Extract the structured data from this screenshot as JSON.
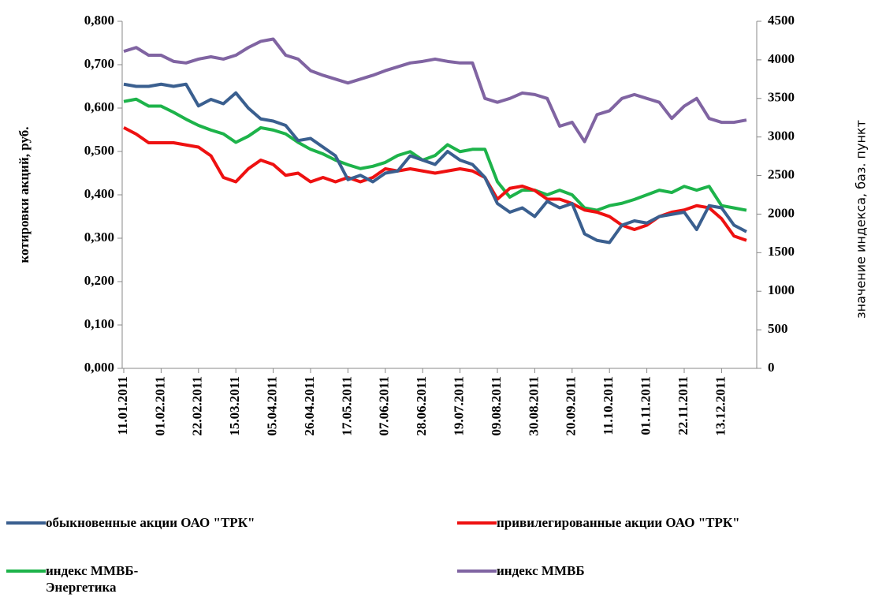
{
  "chart_data": {
    "type": "line",
    "categories": [
      "11.01.2011",
      null,
      null,
      "01.02.2011",
      null,
      null,
      "22.02.2011",
      null,
      null,
      "15.03.2011",
      null,
      null,
      "05.04.2011",
      null,
      null,
      "26.04.2011",
      null,
      null,
      "17.05.2011",
      null,
      null,
      "07.06.2011",
      null,
      null,
      "28.06.2011",
      null,
      null,
      "19.07.2011",
      null,
      null,
      "09.08.2011",
      null,
      null,
      "30.08.2011",
      null,
      null,
      "20.09.2011",
      null,
      null,
      "11.10.2011",
      null,
      null,
      "01.11.2011",
      null,
      null,
      "22.11.2011",
      null,
      null,
      "13.12.2011",
      null,
      null
    ],
    "ylabel": "котировки акций, руб.",
    "y2label": "значение индекса, баз. пункт",
    "ylim": [
      0,
      0.8
    ],
    "yticks": [
      {
        "value": 0,
        "label": "0,000"
      },
      {
        "value": 0.1,
        "label": "0,100"
      },
      {
        "value": 0.2,
        "label": "0,200"
      },
      {
        "value": 0.3,
        "label": "0,300"
      },
      {
        "value": 0.4,
        "label": "0,400"
      },
      {
        "value": 0.5,
        "label": "0,500"
      },
      {
        "value": 0.6,
        "label": "0,600"
      },
      {
        "value": 0.7,
        "label": "0,700"
      },
      {
        "value": 0.8,
        "label": "0,800"
      }
    ],
    "y2lim": [
      0,
      4500
    ],
    "y2ticks": [
      0,
      500,
      1000,
      1500,
      2000,
      2500,
      3000,
      3500,
      4000,
      4500
    ],
    "series": [
      {
        "name": "обыкновенные акции  ОАО \"ТРК\"",
        "color": "#3a5f8f",
        "values": [
          0.655,
          0.65,
          0.65,
          0.655,
          0.65,
          0.655,
          0.605,
          0.62,
          0.61,
          0.635,
          0.6,
          0.575,
          0.57,
          0.56,
          0.525,
          0.53,
          0.51,
          0.49,
          0.435,
          0.445,
          0.43,
          0.45,
          0.455,
          0.49,
          0.48,
          0.47,
          0.5,
          0.48,
          0.47,
          0.44,
          0.38,
          0.36,
          0.37,
          0.35,
          0.385,
          0.37,
          0.38,
          0.31,
          0.295,
          0.29,
          0.33,
          0.34,
          0.335,
          0.35,
          0.355,
          0.36,
          0.32,
          0.375,
          0.37,
          0.33,
          0.315
        ]
      },
      {
        "name": "привилегированные акции ОАО \"ТРК\"",
        "color": "#ee1111",
        "values": [
          0.555,
          0.54,
          0.52,
          0.52,
          0.52,
          0.515,
          0.51,
          0.49,
          0.44,
          0.43,
          0.46,
          0.48,
          0.47,
          0.445,
          0.45,
          0.43,
          0.44,
          0.43,
          0.44,
          0.43,
          0.44,
          0.46,
          0.455,
          0.46,
          0.455,
          0.45,
          0.455,
          0.46,
          0.455,
          0.44,
          0.39,
          0.415,
          0.42,
          0.41,
          0.39,
          0.39,
          0.38,
          0.365,
          0.36,
          0.35,
          0.33,
          0.32,
          0.33,
          0.35,
          0.36,
          0.365,
          0.375,
          0.37,
          0.345,
          0.305,
          0.295
        ]
      },
      {
        "name": "индекс ММВБ-Энергетика",
        "color": "#1db34a",
        "axis": "y2",
        "values": [
          3460,
          3490,
          3400,
          3400,
          3320,
          3230,
          3150,
          3090,
          3040,
          2930,
          3010,
          3120,
          3090,
          3040,
          2930,
          2840,
          2780,
          2700,
          2640,
          2590,
          2620,
          2670,
          2760,
          2810,
          2700,
          2760,
          2900,
          2810,
          2840,
          2840,
          2420,
          2220,
          2310,
          2310,
          2250,
          2310,
          2250,
          2080,
          2050,
          2110,
          2140,
          2190,
          2250,
          2310,
          2280,
          2360,
          2310,
          2360,
          2110,
          2080,
          2050
        ]
      },
      {
        "name": "индекс ММВБ",
        "color": "#8064a2",
        "axis": "y2",
        "values": [
          4110,
          4160,
          4060,
          4060,
          3980,
          3960,
          4010,
          4040,
          4010,
          4060,
          4160,
          4240,
          4270,
          4060,
          4010,
          3860,
          3800,
          3750,
          3700,
          3750,
          3800,
          3860,
          3910,
          3960,
          3980,
          4010,
          3980,
          3960,
          3960,
          3500,
          3450,
          3500,
          3570,
          3550,
          3500,
          3140,
          3190,
          2940,
          3290,
          3340,
          3500,
          3550,
          3500,
          3450,
          3240,
          3400,
          3500,
          3240,
          3190,
          3190,
          3220
        ]
      }
    ]
  }
}
